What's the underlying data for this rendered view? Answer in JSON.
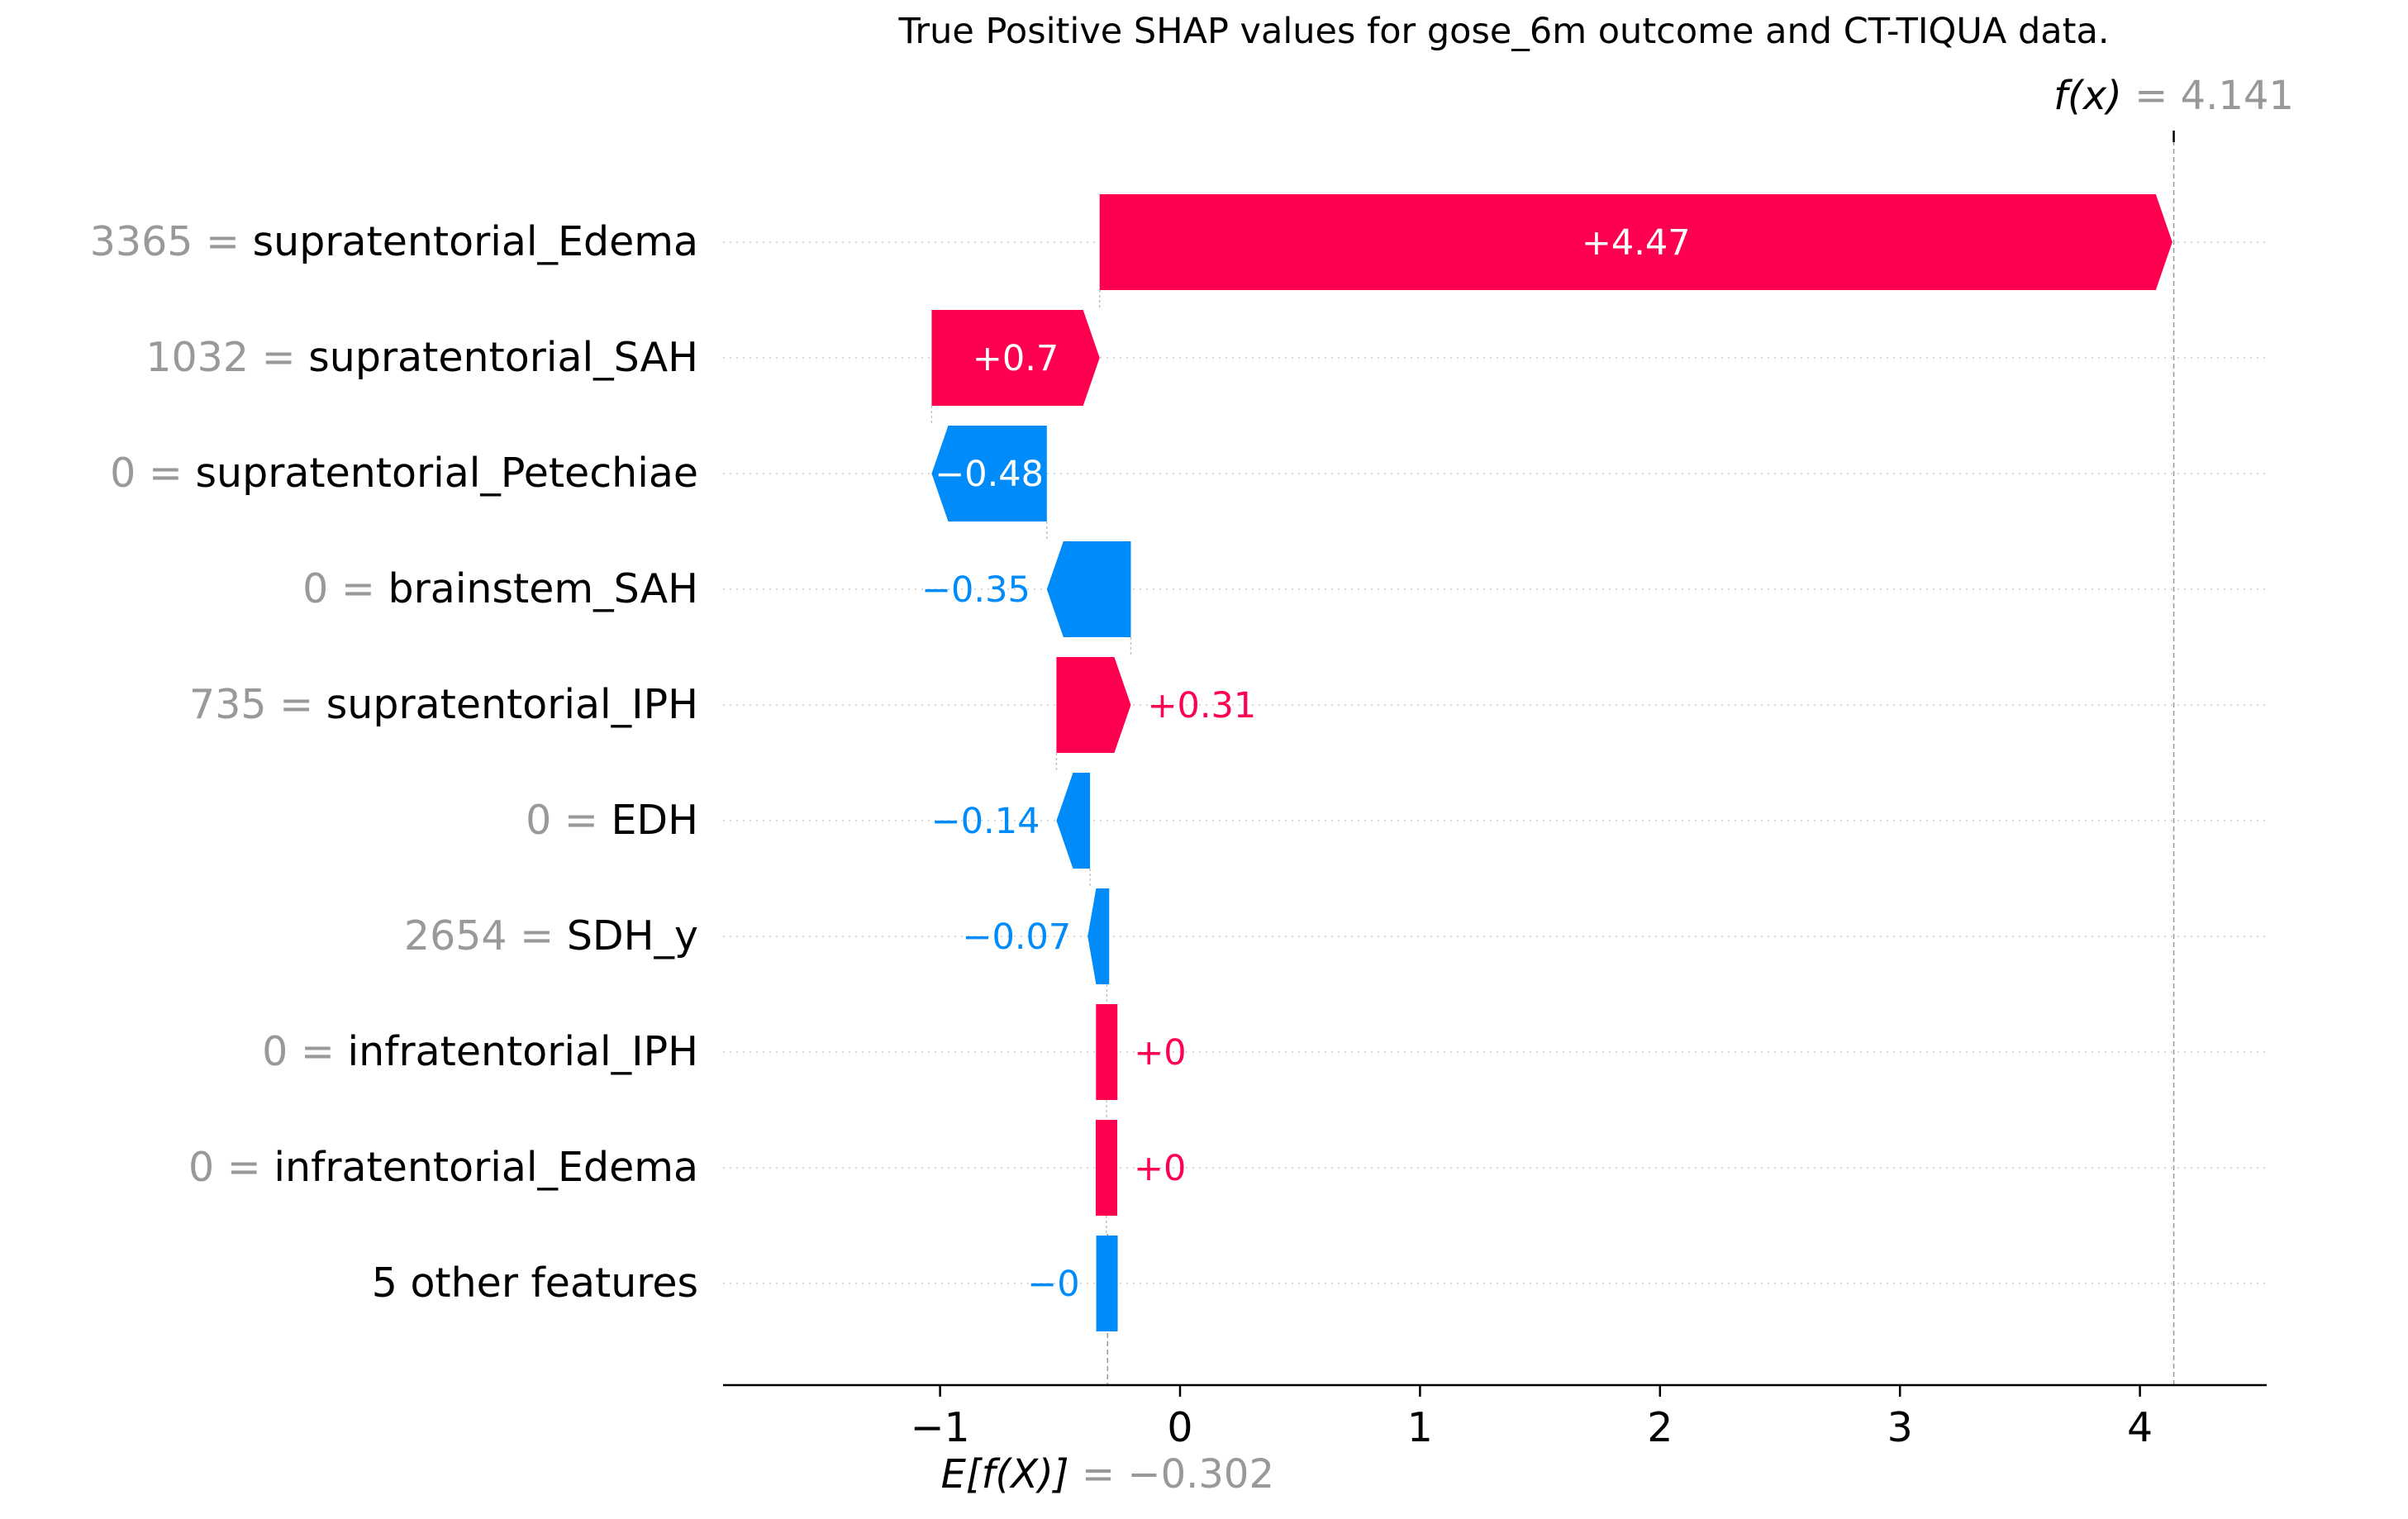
{
  "chart_data": {
    "type": "waterfall",
    "title": "True Positive SHAP values for gose_6m outcome and CT-TIQUA data.",
    "base_value": -0.302,
    "output_value": 4.141,
    "base_label": {
      "name": "E[f(X)]",
      "value_text": "= −0.302"
    },
    "output_label": {
      "name": "f(x)",
      "value_text": "= 4.141"
    },
    "xlim": [
      -1.9,
      4.5
    ],
    "xticks": [
      -1,
      0,
      1,
      2,
      3,
      4
    ],
    "xtick_labels": [
      "−1",
      "0",
      "1",
      "2",
      "3",
      "4"
    ],
    "features": [
      {
        "value": "3365",
        "name": "supratentorial_Edema",
        "shap": 4.47,
        "label": "+4.47"
      },
      {
        "value": "1032",
        "name": "supratentorial_SAH",
        "shap": 0.7,
        "label": "+0.7"
      },
      {
        "value": "0",
        "name": "supratentorial_Petechiae",
        "shap": -0.48,
        "label": "−0.48"
      },
      {
        "value": "0",
        "name": "brainstem_SAH",
        "shap": -0.35,
        "label": "−0.35"
      },
      {
        "value": "735",
        "name": "supratentorial_IPH",
        "shap": 0.31,
        "label": "+0.31"
      },
      {
        "value": "0",
        "name": "EDH",
        "shap": -0.14,
        "label": "−0.14"
      },
      {
        "value": "2654",
        "name": "SDH_y",
        "shap": -0.07,
        "label": "−0.07"
      },
      {
        "value": "0",
        "name": "infratentorial_IPH",
        "shap": 0.001,
        "label": "+0"
      },
      {
        "value": "0",
        "name": "infratentorial_Edema",
        "shap": 0.001,
        "label": "+0"
      },
      {
        "value": "",
        "name": "5 other features",
        "shap": -0.005,
        "label": "−0"
      }
    ],
    "colors": {
      "positive": "#ff0051",
      "negative": "#008bfb",
      "feature_value": "#999999",
      "axis": "#000000"
    }
  }
}
